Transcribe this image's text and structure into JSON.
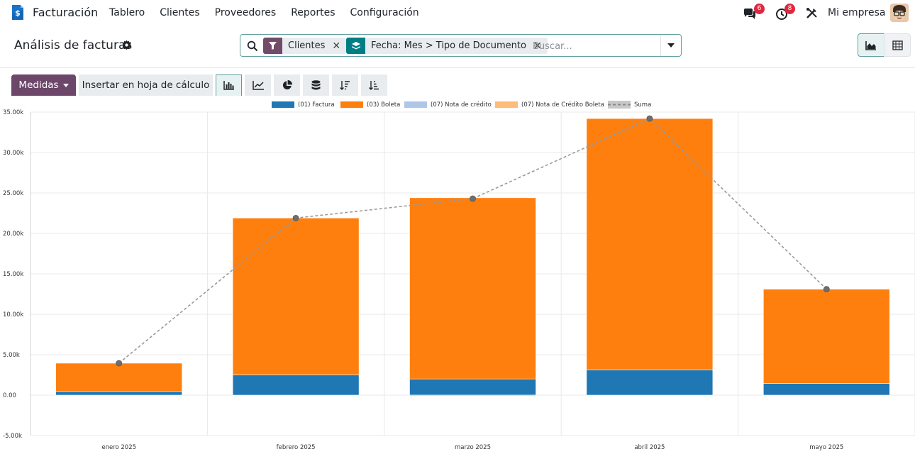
{
  "navbar": {
    "app_name": "Facturación",
    "menu": [
      "Tablero",
      "Clientes",
      "Proveedores",
      "Reportes",
      "Configuración"
    ],
    "messages_count": "6",
    "activities_count": "8",
    "company": "Mi empresa"
  },
  "control": {
    "title": "Análisis de facturas",
    "facets": [
      {
        "label": "Clientes",
        "icon": "filter-icon",
        "color": "#714b67"
      },
      {
        "label": "Fecha: Mes > Tipo de Documento",
        "icon": "layers-icon",
        "color": "#017e84"
      }
    ],
    "search_placeholder": "Buscar..."
  },
  "toolbar": {
    "measures_label": "Medidas",
    "sheet_label": "Insertar en hoja de cálculo"
  },
  "colors": {
    "accent": "#714b67",
    "factura": "#1f77b4",
    "boleta": "#ff7f0e",
    "nota_credito": "#aec7e8",
    "nota_credito_boleta": "#ffbb78",
    "suma": "#777777"
  },
  "chart_data": {
    "type": "bar",
    "stacked": true,
    "categories": [
      "enero 2025",
      "febrero 2025",
      "marzo 2025",
      "abril 2025",
      "mayo 2025"
    ],
    "series": [
      {
        "name": "(01) Factura",
        "values": [
          450,
          2500,
          2000,
          3100,
          1450
        ]
      },
      {
        "name": "(03) Boleta",
        "values": [
          3500,
          19400,
          22400,
          31100,
          11650
        ]
      },
      {
        "name": "(07) Nota de crédito",
        "values": [
          0,
          0,
          -100,
          0,
          0
        ]
      },
      {
        "name": "(07) Nota de Crédito Boleta",
        "values": [
          0,
          0,
          0,
          0,
          0
        ]
      }
    ],
    "line": {
      "name": "Suma",
      "values": [
        3950,
        21900,
        24300,
        34200,
        13100
      ]
    },
    "yticks": [
      "-5.00k",
      "0.00",
      "5.00k",
      "10.00k",
      "15.00k",
      "20.00k",
      "25.00k",
      "30.00k",
      "35.00k"
    ],
    "ylim": [
      -5000,
      35000
    ],
    "grid": true,
    "legend": "top"
  }
}
